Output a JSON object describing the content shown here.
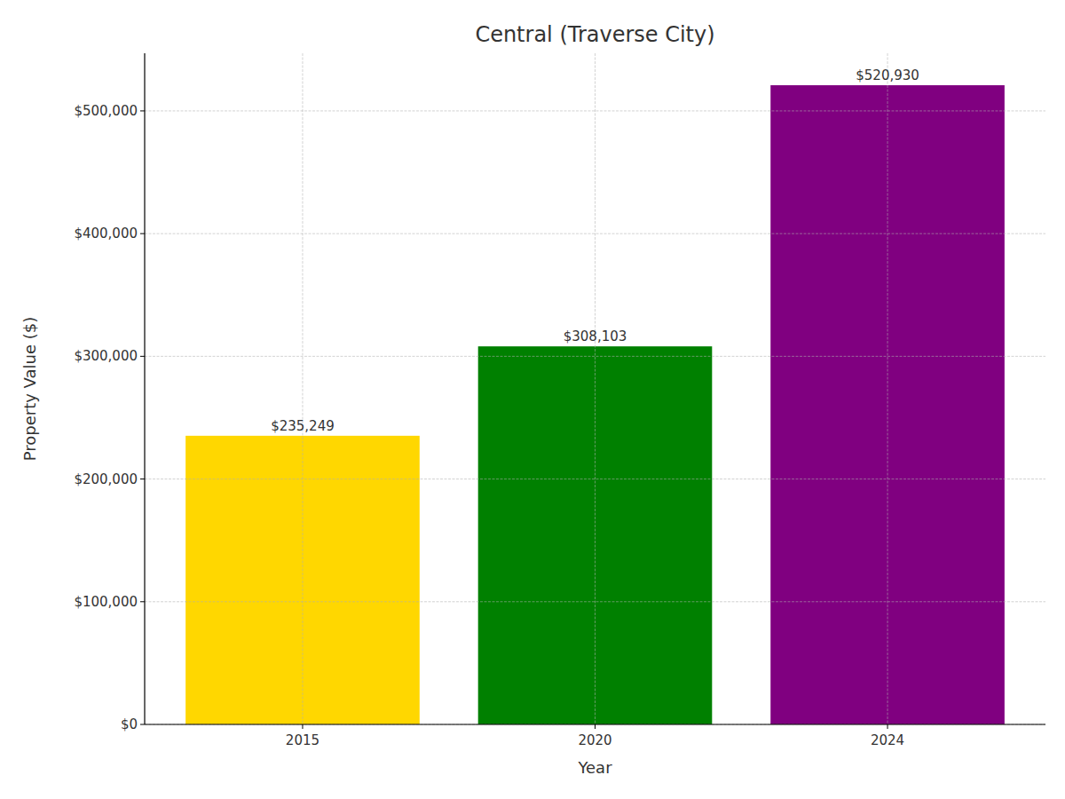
{
  "chart_data": {
    "type": "bar",
    "title": "Central (Traverse City)",
    "x_label": "Year",
    "y_label": "Property Value ($)",
    "categories": [
      "2015",
      "2020",
      "2024"
    ],
    "values": [
      235249,
      308103,
      520930
    ],
    "value_labels": [
      "$235,249",
      "$308,103",
      "$520,930"
    ],
    "colors": [
      "#ffd700",
      "#008000",
      "#800080"
    ],
    "ylim": [
      0,
      546976.5
    ],
    "yticks": [
      {
        "value": 0,
        "label": "$0"
      },
      {
        "value": 100000,
        "label": "$100,000"
      },
      {
        "value": 200000,
        "label": "$200,000"
      },
      {
        "value": 300000,
        "label": "$300,000"
      },
      {
        "value": 400000,
        "label": "$400,000"
      },
      {
        "value": 500000,
        "label": "$500,000"
      }
    ],
    "grid": true,
    "data_labels": true
  }
}
